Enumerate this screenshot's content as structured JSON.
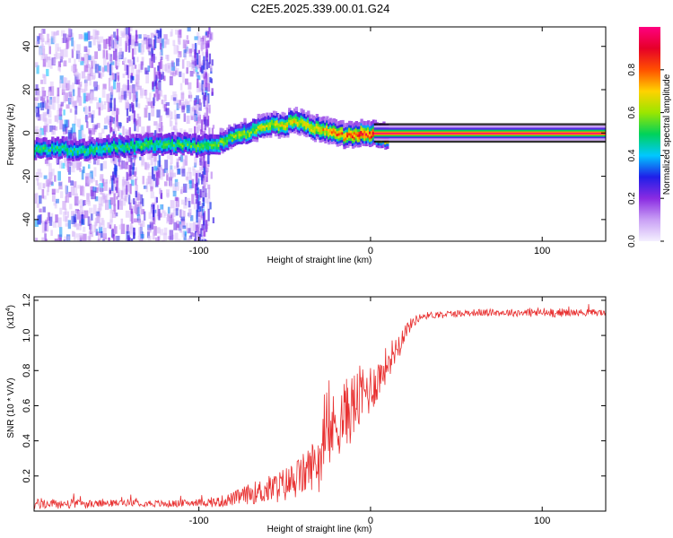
{
  "title": "C2E5.2025.339.00.01.G24",
  "chart_data": [
    {
      "type": "heatmap",
      "name": "spectrogram",
      "xlabel": "Height of straight line (km)",
      "ylabel": "Frequency (Hz)",
      "xlim": [
        -196,
        137
      ],
      "ylim": [
        -50,
        49
      ],
      "xticks": [
        -100,
        0,
        100
      ],
      "xtick_labels": [
        "-100",
        "0",
        "100"
      ],
      "yticks": [
        -40,
        -20,
        0,
        20,
        40
      ],
      "ytick_labels": [
        "-40",
        "-20",
        "0",
        "20",
        "40"
      ],
      "colorbar": {
        "label": "Normalized spectral amplitude",
        "range": [
          0,
          1
        ],
        "ticks": [
          0.0,
          0.2,
          0.4,
          0.6,
          0.8
        ],
        "tick_labels": [
          "0.0",
          "0.2",
          "0.4",
          "0.6",
          "0.8"
        ],
        "colormap": [
          "#f4f0ff",
          "#c9a0f5",
          "#8a2be2",
          "#1f1fe8",
          "#00c8ff",
          "#00d25a",
          "#9be600",
          "#ffd200",
          "#ff5000",
          "#e60028",
          "#ff0080"
        ]
      },
      "ridge": {
        "x": [
          -196,
          -180,
          -170,
          -160,
          -150,
          -140,
          -130,
          -120,
          -110,
          -100,
          -90,
          -80,
          -70,
          -60,
          -50,
          -45,
          -40,
          -35,
          -30,
          -25,
          -20,
          -15,
          -10,
          -5,
          0,
          5,
          10,
          20,
          40,
          60,
          80,
          100,
          120,
          137
        ],
        "y": [
          -6,
          -6,
          -7,
          -6,
          -5,
          -5,
          -4,
          -4,
          -4,
          -5,
          -4,
          0,
          2,
          5,
          5,
          7,
          6,
          4,
          3,
          2,
          1,
          0,
          0,
          1,
          1,
          0,
          0,
          0,
          0,
          0,
          0,
          0,
          0,
          0
        ]
      },
      "ridge_amplitude": {
        "x": [
          -196,
          -100,
          -80,
          -60,
          -40,
          -20,
          0,
          10,
          137
        ],
        "v": [
          0.5,
          0.55,
          0.6,
          0.65,
          0.7,
          0.8,
          0.9,
          1.0,
          1.0
        ]
      },
      "scatter_region": [
        -196,
        -95
      ]
    },
    {
      "type": "line",
      "name": "snr",
      "xlabel": "Height of straight line (km)",
      "ylabel": "SNR (10 * V/V)",
      "scale_label": "(x10",
      "scale_exponent": "4",
      "scale_suffix": ")",
      "xlim": [
        -196,
        137
      ],
      "ylim": [
        0.0,
        1.22
      ],
      "xticks": [
        -100,
        0,
        100
      ],
      "xtick_labels": [
        "-100",
        "0",
        "100"
      ],
      "yticks": [
        0.2,
        0.4,
        0.6,
        0.8,
        1.0,
        1.2
      ],
      "ytick_labels": [
        "0.2",
        "0.4",
        "0.6",
        "0.8",
        "1.0",
        "1.2"
      ],
      "color": "#e83030",
      "series": [
        {
          "name": "SNR",
          "x": [
            -196,
            -180,
            -160,
            -140,
            -120,
            -100,
            -90,
            -80,
            -70,
            -60,
            -50,
            -40,
            -30,
            -25,
            -20,
            -15,
            -10,
            -5,
            0,
            5,
            10,
            15,
            20,
            25,
            30,
            40,
            60,
            80,
            100,
            120,
            137
          ],
          "y": [
            0.04,
            0.04,
            0.04,
            0.05,
            0.04,
            0.05,
            0.05,
            0.07,
            0.1,
            0.12,
            0.15,
            0.2,
            0.3,
            0.42,
            0.5,
            0.55,
            0.6,
            0.66,
            0.7,
            0.76,
            0.85,
            0.93,
            1.02,
            1.08,
            1.11,
            1.12,
            1.13,
            1.13,
            1.13,
            1.13,
            1.13
          ],
          "noise": [
            0.03,
            0.03,
            0.02,
            0.02,
            0.02,
            0.02,
            0.03,
            0.04,
            0.06,
            0.08,
            0.1,
            0.12,
            0.15,
            0.2,
            0.2,
            0.2,
            0.2,
            0.18,
            0.15,
            0.12,
            0.1,
            0.08,
            0.05,
            0.03,
            0.02,
            0.02,
            0.02,
            0.02,
            0.03,
            0.02,
            0.02
          ]
        }
      ]
    }
  ]
}
